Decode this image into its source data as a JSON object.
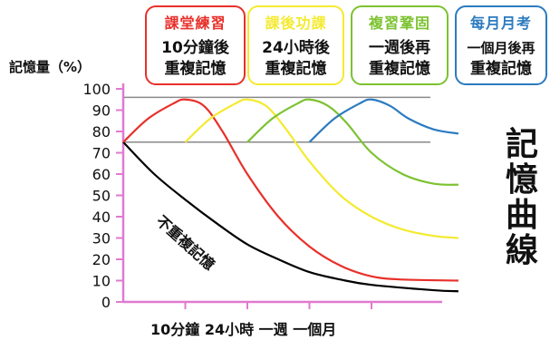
{
  "chart_data": {
    "type": "line",
    "ylabel": "記憶量（%）",
    "ylim": [
      0,
      100
    ],
    "yticks": [
      0,
      10,
      20,
      30,
      40,
      50,
      60,
      70,
      80,
      90,
      100
    ],
    "xtick_labels": [
      "10分鐘",
      "24小時",
      "一週",
      "一個月"
    ],
    "xlabels_text": "10分鐘 24小時 一週 一個月",
    "reference_lines": [
      96,
      75
    ],
    "annotation": "不重複記憶",
    "side_title": [
      "記",
      "憶",
      "曲",
      "線"
    ],
    "series": [
      {
        "name": "不重複記憶",
        "color": "#000000",
        "points": [
          [
            0,
            75
          ],
          [
            0.5,
            60
          ],
          [
            1,
            48
          ],
          [
            1.5,
            37
          ],
          [
            2,
            27
          ],
          [
            2.5,
            20
          ],
          [
            3,
            14
          ],
          [
            3.5,
            10.5
          ],
          [
            4,
            8
          ],
          [
            5,
            5.5
          ],
          [
            5.4,
            5
          ]
        ]
      },
      {
        "name": "課堂練習",
        "color": "#e8302a",
        "points": [
          [
            0,
            75
          ],
          [
            0.4,
            86
          ],
          [
            0.8,
            93
          ],
          [
            1,
            95
          ],
          [
            1.3,
            92
          ],
          [
            1.6,
            80
          ],
          [
            2,
            60
          ],
          [
            2.5,
            40
          ],
          [
            3,
            26
          ],
          [
            3.5,
            17
          ],
          [
            4,
            12
          ],
          [
            4.5,
            10.5
          ],
          [
            5.4,
            10
          ]
        ]
      },
      {
        "name": "課後功課",
        "color": "#f4ea30",
        "points": [
          [
            1,
            75
          ],
          [
            1.4,
            86
          ],
          [
            1.8,
            93
          ],
          [
            2,
            95
          ],
          [
            2.3,
            92
          ],
          [
            2.6,
            82
          ],
          [
            3,
            66
          ],
          [
            3.5,
            50
          ],
          [
            4,
            40
          ],
          [
            4.5,
            34
          ],
          [
            5,
            31
          ],
          [
            5.4,
            30
          ]
        ]
      },
      {
        "name": "複習鞏固",
        "color": "#7cc230",
        "points": [
          [
            2,
            75
          ],
          [
            2.4,
            86
          ],
          [
            2.8,
            93
          ],
          [
            3,
            95
          ],
          [
            3.3,
            92
          ],
          [
            3.6,
            84
          ],
          [
            4,
            70
          ],
          [
            4.5,
            60
          ],
          [
            5,
            55.5
          ],
          [
            5.4,
            55
          ]
        ]
      },
      {
        "name": "每月月考",
        "color": "#2b7bc0",
        "points": [
          [
            3,
            75
          ],
          [
            3.4,
            86
          ],
          [
            3.8,
            93
          ],
          [
            4,
            95
          ],
          [
            4.3,
            92
          ],
          [
            4.6,
            86
          ],
          [
            5,
            81
          ],
          [
            5.4,
            79
          ]
        ]
      }
    ]
  },
  "boxes": [
    {
      "title": "課堂練習",
      "color": "#e8302a",
      "lines": [
        "10分鐘後",
        "重複記憶"
      ]
    },
    {
      "title": "課後功課",
      "color": "#f4ea30",
      "lines": [
        "24小時後",
        "重複記憶"
      ]
    },
    {
      "title": "複習鞏固",
      "color": "#7cc230",
      "lines": [
        "一週後再",
        "重複記憶"
      ]
    },
    {
      "title": "每月月考",
      "color": "#2b7bc0",
      "lines": [
        "一個月後再",
        "重複記憶"
      ]
    }
  ]
}
